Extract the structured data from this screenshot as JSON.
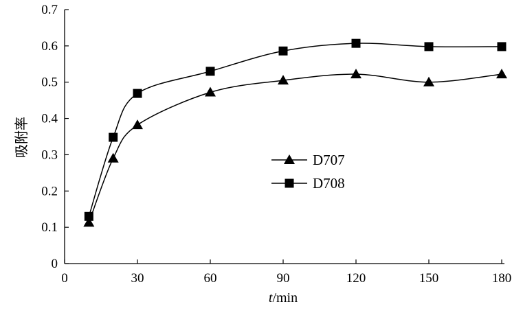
{
  "chart_data": {
    "type": "line",
    "title": "",
    "xlabel_italic": "t",
    "xlabel_rest": "/min",
    "ylabel": "吸附率",
    "xlim": [
      0,
      180
    ],
    "ylim": [
      0,
      0.7
    ],
    "xticks": [
      "0",
      "30",
      "60",
      "90",
      "120",
      "150",
      "180"
    ],
    "yticks": [
      "0",
      "0.1",
      "0.2",
      "0.3",
      "0.4",
      "0.5",
      "0.6",
      "0.7"
    ],
    "grid": false,
    "legend_position": "center",
    "x": [
      10,
      20,
      30,
      60,
      90,
      120,
      150,
      180
    ],
    "series": [
      {
        "name": "D707",
        "marker": "triangle",
        "values": [
          0.113,
          0.29,
          0.382,
          0.472,
          0.505,
          0.522,
          0.5,
          0.522
        ]
      },
      {
        "name": "D708",
        "marker": "square",
        "values": [
          0.13,
          0.348,
          0.469,
          0.53,
          0.586,
          0.607,
          0.598,
          0.598
        ]
      }
    ],
    "color": "#000000"
  }
}
